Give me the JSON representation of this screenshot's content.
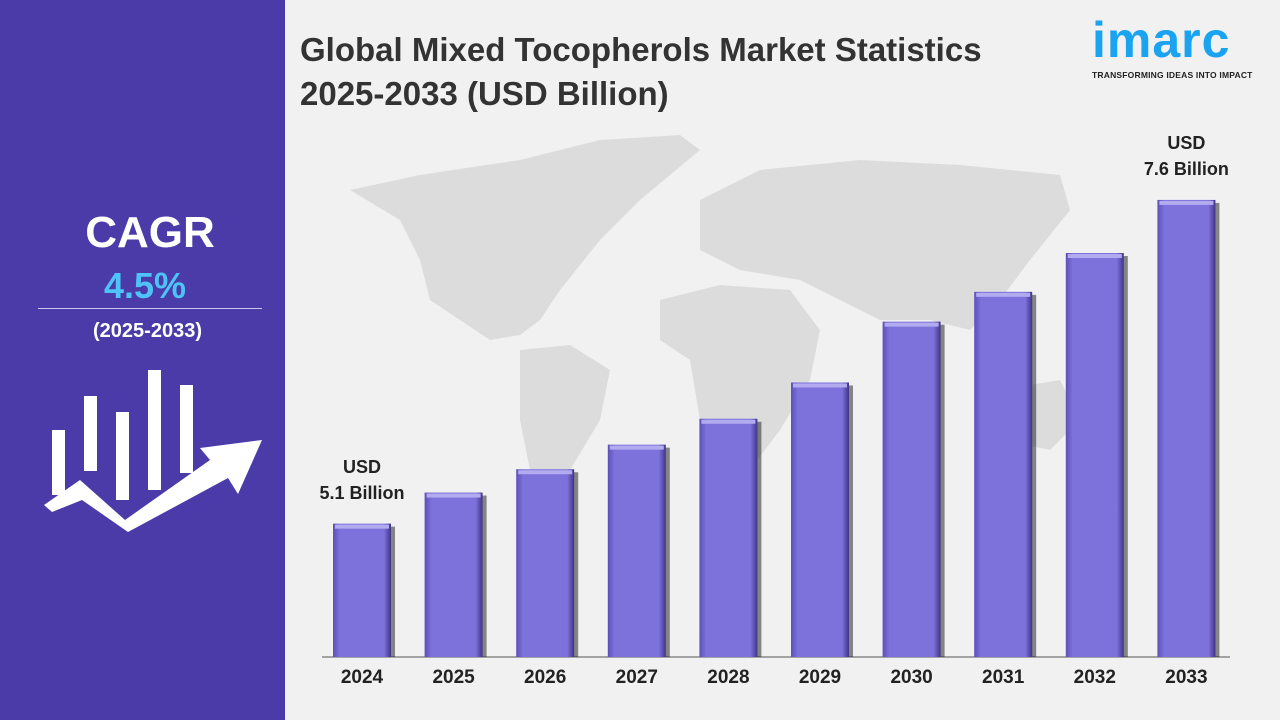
{
  "left_panel": {
    "cagr_label": "CAGR",
    "cagr_value": "4.5%",
    "period": "(2025-2033)",
    "icon": "bar-growth-arrow-icon",
    "background": "#4a3ba8",
    "accent": "#4fc3f7"
  },
  "header": {
    "title_line1": "Global Mixed Tocopherols Market Statistics",
    "title_line2": "2025-2033 (USD Billion)"
  },
  "logo": {
    "word": "imarc",
    "tagline": "TRANSFORMING IDEAS INTO IMPACT",
    "color": "#1aa3f0"
  },
  "chart_data": {
    "type": "bar",
    "title": "Global Mixed Tocopherols Market Statistics 2025-2033 (USD Billion)",
    "categories": [
      "2024",
      "2025",
      "2026",
      "2027",
      "2028",
      "2029",
      "2030",
      "2031",
      "2032",
      "2033"
    ],
    "values": [
      5.1,
      5.34,
      5.52,
      5.71,
      5.91,
      6.19,
      6.66,
      6.89,
      7.19,
      7.6
    ],
    "ylim": [
      4.07,
      8.14
    ],
    "grid": false,
    "bar_color": "#7b6fd9",
    "annotations": [
      {
        "category": "2024",
        "line1": "USD",
        "line2": "5.1 Billion"
      },
      {
        "category": "2033",
        "line1": "USD",
        "line2": "7.6 Billion"
      }
    ]
  }
}
